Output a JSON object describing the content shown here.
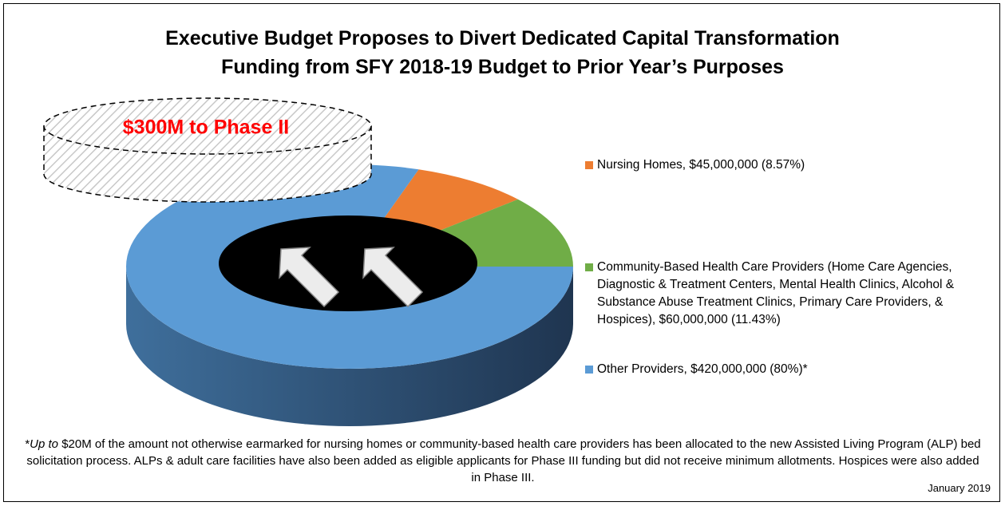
{
  "chart_data": {
    "type": "pie",
    "title": [
      "Executive Budget Proposes to Divert Dedicated Capital Transformation",
      "Funding from SFY 2018-19 Budget to Prior Year’s Purposes"
    ],
    "annotation": "$300M to Phase II",
    "categories": [
      "Nursing Homes, $45,000,000 (8.57%)",
      "Community-Based Health Care Providers (Home Care Agencies, Diagnostic & Treatment Centers, Mental Health Clinics, Alcohol & Substance Abuse Treatment Clinics, Primary Care Providers, & Hospices), $60,000,000 (11.43%)",
      "Other Providers, $420,000,000 (80%)*"
    ],
    "values": [
      45000000,
      60000000,
      420000000
    ],
    "colors": [
      "#ed7d31",
      "#70ad47",
      "#5b9bd5"
    ],
    "side_colors": [
      [
        "#b35a1e",
        "#8a4314"
      ],
      [
        "#507f33",
        "#385a23"
      ],
      [
        "#3f6f9c",
        "#1f3550"
      ]
    ],
    "donut": true,
    "footnote": [
      "*",
      "Up to",
      " $20M of the amount not otherwise earmarked for nursing homes or community-based health care providers has been allocated to the new Assisted Living Program (ALP) bed solicitation process. ALPs & adult care facilities have also been added as eligible applicants for Phase III funding but did not receive minimum allotments. Hospices were also added in Phase III."
    ],
    "date": "January 2019"
  }
}
